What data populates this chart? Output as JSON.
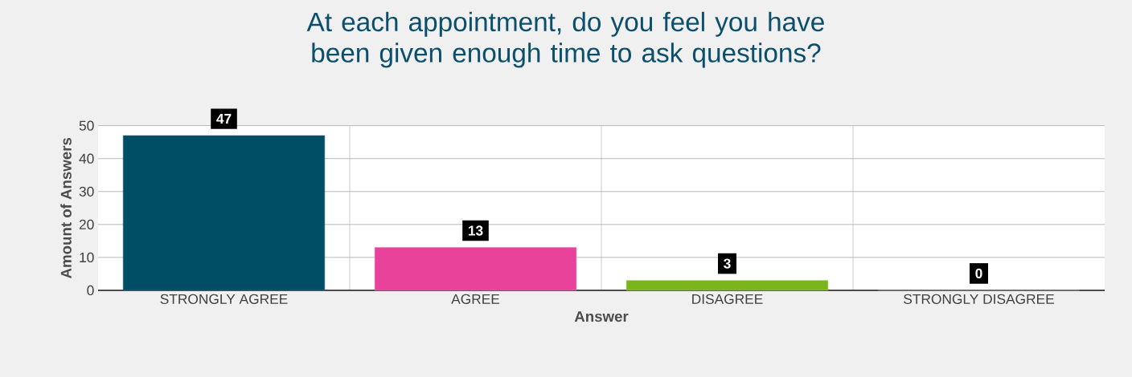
{
  "chart_data": {
    "type": "bar",
    "title": "At each appointment, do you feel you have been given enough time to ask questions?",
    "xlabel": "Answer",
    "ylabel": "Amount of Answers",
    "categories": [
      "STRONGLY AGREE",
      "AGREE",
      "DISAGREE",
      "STRONGLY DISAGREE"
    ],
    "values": [
      47,
      13,
      3,
      0
    ],
    "colors": [
      "#004d66",
      "#e8429a",
      "#7ab51d",
      "#808080"
    ],
    "ylim": [
      0,
      50
    ],
    "yticks": [
      0,
      10,
      20,
      30,
      40,
      50
    ],
    "grid": true,
    "data_labels": true
  }
}
